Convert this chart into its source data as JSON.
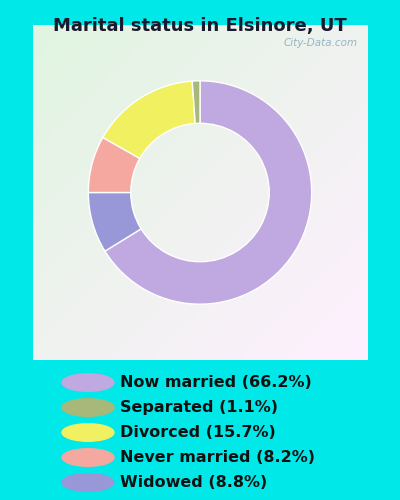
{
  "title": "Marital status in Elsinore, UT",
  "slices": [
    66.2,
    8.8,
    8.2,
    15.7,
    1.1
  ],
  "labels": [
    "Now married (66.2%)",
    "Separated (1.1%)",
    "Divorced (15.7%)",
    "Never married (8.2%)",
    "Widowed (8.8%)"
  ],
  "legend_colors": [
    "#c0a8e0",
    "#a8b87a",
    "#f0f060",
    "#f4a8a0",
    "#9898d8"
  ],
  "slice_colors": [
    "#c0a8e0",
    "#9898d8",
    "#f4a8a0",
    "#f0f060",
    "#a8b87a"
  ],
  "bg_color_outer": "#00e8e8",
  "chart_border_color": "#e8e8e8",
  "title_fontsize": 13,
  "legend_fontsize": 11.5,
  "watermark": "City-Data.com",
  "startangle": 90
}
